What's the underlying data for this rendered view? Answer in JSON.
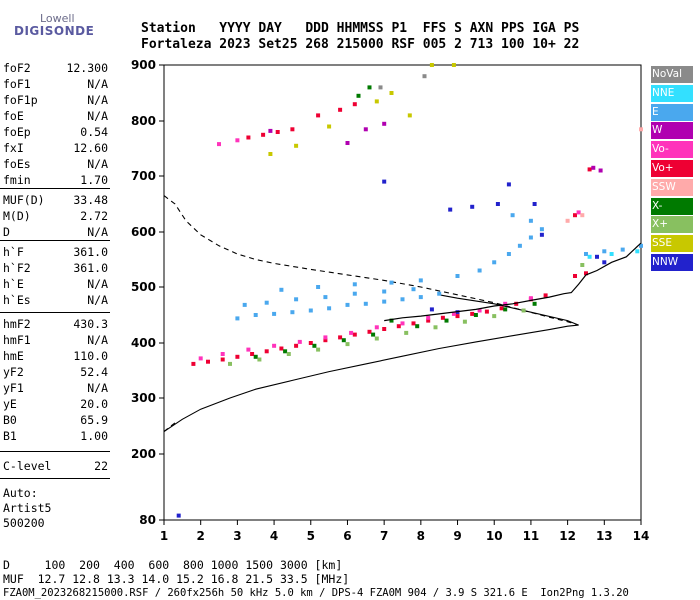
{
  "header": {
    "logo_top": "Lowell",
    "logo_bottom": "DIGISONDE",
    "line1": "Station   YYYY DAY   DDD HHMMSS P1  FFS S AXN PPS IGA PS",
    "line2": "Fortaleza 2023 Set25 268 215000 RSF 005 2 713 100 10+ 22"
  },
  "params": [
    {
      "k": "foF2",
      "v": "12.300"
    },
    {
      "k": "foF1",
      "v": "N/A"
    },
    {
      "k": "foF1p",
      "v": "N/A"
    },
    {
      "k": "foE",
      "v": "N/A"
    },
    {
      "k": "foEp",
      "v": "0.54"
    },
    {
      "k": "fxI",
      "v": "12.60"
    },
    {
      "k": "foEs",
      "v": "N/A"
    },
    {
      "k": "fmin",
      "v": "1.70"
    },
    {
      "k": "MUF(D)",
      "v": "33.48"
    },
    {
      "k": "M(D)",
      "v": "2.72"
    },
    {
      "k": "D",
      "v": "N/A"
    },
    {
      "k": "h`F",
      "v": "361.0"
    },
    {
      "k": "h`F2",
      "v": "361.0"
    },
    {
      "k": "h`E",
      "v": "N/A"
    },
    {
      "k": "h`Es",
      "v": "N/A"
    },
    {
      "k": "hmF2",
      "v": "430.3"
    },
    {
      "k": "hmF1",
      "v": "N/A"
    },
    {
      "k": "hmE",
      "v": "110.0"
    },
    {
      "k": "yF2",
      "v": "52.4"
    },
    {
      "k": "yF1",
      "v": "N/A"
    },
    {
      "k": "yE",
      "v": "20.0"
    },
    {
      "k": "B0",
      "v": "65.9"
    },
    {
      "k": "B1",
      "v": "1.00"
    },
    {
      "k": "C-level",
      "v": "22"
    }
  ],
  "auto": [
    "Auto:",
    "Artist5",
    "500200"
  ],
  "footer": {
    "line1": "D     100  200  400  600  800 1000 1500 3000 [km]",
    "line2": "MUF  12.7 12.8 13.3 14.0 15.2 16.8 21.5 33.5 [MHz]",
    "line3": "FZA0M_2023268215000.RSF / 260fx256h 50 kHz 5.0 km / DPS-4 FZA0M 904 / 3.9 S 321.6 E  Ion2Png 1.3.20"
  },
  "legend": [
    {
      "label": "NoVal",
      "color": "#8a8a8a"
    },
    {
      "label": "NNE",
      "color": "#33e0ff"
    },
    {
      "label": "E",
      "color": "#4aa8ee"
    },
    {
      "label": "W",
      "color": "#b000b0"
    },
    {
      "label": "Vo-",
      "color": "#ff33bb"
    },
    {
      "label": "Vo+",
      "color": "#ee0033"
    },
    {
      "label": "SSW",
      "color": "#ffaaaa"
    },
    {
      "label": "X-",
      "color": "#007a00"
    },
    {
      "label": "X+",
      "color": "#88c060"
    },
    {
      "label": "SSE",
      "color": "#c8c800"
    },
    {
      "label": "NNW",
      "color": "#2222cc"
    }
  ],
  "chart_data": {
    "type": "scatter",
    "xlim": [
      1,
      14
    ],
    "ylim": [
      80,
      900
    ],
    "x_ticks": [
      1,
      2,
      3,
      4,
      5,
      6,
      7,
      8,
      9,
      10,
      11,
      12,
      13,
      14
    ],
    "y_ticks": [
      80,
      200,
      300,
      400,
      500,
      600,
      700,
      800,
      900
    ],
    "frame_color": "#000000",
    "series": [
      {
        "name": "E",
        "color": "#4aa8ee",
        "points": [
          [
            3.0,
            444
          ],
          [
            3.5,
            450
          ],
          [
            4.0,
            452
          ],
          [
            4.5,
            455
          ],
          [
            5.0,
            458
          ],
          [
            5.5,
            462
          ],
          [
            6.0,
            468
          ],
          [
            6.5,
            470
          ],
          [
            7.0,
            474
          ],
          [
            7.5,
            478
          ],
          [
            8.0,
            482
          ],
          [
            8.5,
            488
          ],
          [
            3.2,
            468
          ],
          [
            3.8,
            472
          ],
          [
            4.6,
            478
          ],
          [
            5.4,
            482
          ],
          [
            6.2,
            488
          ],
          [
            7.0,
            492
          ],
          [
            7.8,
            496
          ],
          [
            4.2,
            495
          ],
          [
            5.2,
            500
          ],
          [
            6.2,
            505
          ],
          [
            7.2,
            508
          ],
          [
            8.0,
            512
          ],
          [
            9.0,
            520
          ],
          [
            9.6,
            530
          ],
          [
            10.0,
            545
          ],
          [
            10.4,
            560
          ],
          [
            10.7,
            575
          ],
          [
            11.0,
            590
          ],
          [
            11.3,
            605
          ],
          [
            10.5,
            630
          ],
          [
            11.0,
            620
          ],
          [
            12.5,
            560
          ],
          [
            13.0,
            565
          ],
          [
            13.5,
            568
          ],
          [
            14.0,
            575
          ]
        ]
      },
      {
        "name": "NNW",
        "color": "#2222cc",
        "points": [
          [
            7.0,
            690
          ],
          [
            8.8,
            640
          ],
          [
            9.4,
            645
          ],
          [
            10.1,
            650
          ],
          [
            10.4,
            685
          ],
          [
            11.1,
            650
          ],
          [
            11.3,
            595
          ],
          [
            12.8,
            555
          ],
          [
            13.0,
            545
          ],
          [
            8.3,
            460
          ],
          [
            9.0,
            455
          ],
          [
            1.4,
            88
          ]
        ]
      },
      {
        "name": "Vo+",
        "color": "#ee0033",
        "points": [
          [
            1.8,
            362
          ],
          [
            2.2,
            366
          ],
          [
            2.6,
            370
          ],
          [
            3.0,
            375
          ],
          [
            3.4,
            380
          ],
          [
            3.8,
            385
          ],
          [
            4.2,
            390
          ],
          [
            4.6,
            395
          ],
          [
            5.0,
            400
          ],
          [
            5.4,
            405
          ],
          [
            5.8,
            410
          ],
          [
            6.2,
            415
          ],
          [
            6.6,
            420
          ],
          [
            7.0,
            425
          ],
          [
            7.4,
            430
          ],
          [
            7.8,
            435
          ],
          [
            8.2,
            440
          ],
          [
            8.6,
            445
          ],
          [
            9.0,
            448
          ],
          [
            9.4,
            452
          ],
          [
            9.8,
            456
          ],
          [
            10.2,
            462
          ],
          [
            10.6,
            470
          ],
          [
            11.0,
            478
          ],
          [
            11.4,
            485
          ],
          [
            12.2,
            520
          ],
          [
            12.5,
            525
          ],
          [
            3.3,
            770
          ],
          [
            3.7,
            775
          ],
          [
            4.1,
            780
          ],
          [
            4.5,
            785
          ],
          [
            5.2,
            810
          ],
          [
            5.8,
            820
          ],
          [
            6.2,
            830
          ],
          [
            12.6,
            712
          ],
          [
            12.2,
            630
          ]
        ]
      },
      {
        "name": "Vo-",
        "color": "#ff33bb",
        "points": [
          [
            2.0,
            372
          ],
          [
            2.6,
            380
          ],
          [
            3.3,
            388
          ],
          [
            4.0,
            395
          ],
          [
            4.7,
            402
          ],
          [
            5.4,
            410
          ],
          [
            6.1,
            418
          ],
          [
            6.8,
            428
          ],
          [
            7.5,
            435
          ],
          [
            8.2,
            445
          ],
          [
            8.9,
            452
          ],
          [
            9.6,
            458
          ],
          [
            10.3,
            470
          ],
          [
            11.0,
            480
          ],
          [
            12.3,
            635
          ],
          [
            2.5,
            758
          ],
          [
            3.0,
            765
          ]
        ]
      },
      {
        "name": "X-",
        "color": "#007a00",
        "points": [
          [
            3.5,
            375
          ],
          [
            4.3,
            385
          ],
          [
            5.1,
            395
          ],
          [
            5.9,
            405
          ],
          [
            6.7,
            415
          ],
          [
            7.2,
            440
          ],
          [
            7.9,
            430
          ],
          [
            8.7,
            440
          ],
          [
            9.5,
            450
          ],
          [
            10.3,
            460
          ],
          [
            11.1,
            470
          ],
          [
            6.3,
            845
          ],
          [
            6.6,
            860
          ]
        ]
      },
      {
        "name": "X+",
        "color": "#88c060",
        "points": [
          [
            2.8,
            362
          ],
          [
            3.6,
            370
          ],
          [
            4.4,
            380
          ],
          [
            5.2,
            388
          ],
          [
            6.0,
            398
          ],
          [
            6.8,
            408
          ],
          [
            7.6,
            418
          ],
          [
            8.4,
            428
          ],
          [
            9.2,
            438
          ],
          [
            10.0,
            448
          ],
          [
            10.8,
            458
          ],
          [
            12.4,
            540
          ]
        ]
      },
      {
        "name": "W",
        "color": "#b000b0",
        "points": [
          [
            6.0,
            760
          ],
          [
            6.5,
            785
          ],
          [
            7.0,
            795
          ],
          [
            3.9,
            782
          ],
          [
            12.7,
            715
          ],
          [
            12.9,
            710
          ]
        ]
      },
      {
        "name": "SSE",
        "color": "#c8c800",
        "points": [
          [
            3.9,
            740
          ],
          [
            4.6,
            755
          ],
          [
            5.5,
            790
          ],
          [
            6.8,
            835
          ],
          [
            7.2,
            850
          ],
          [
            7.7,
            810
          ],
          [
            8.3,
            900
          ],
          [
            8.9,
            900
          ]
        ]
      },
      {
        "name": "SSW",
        "color": "#ffaaaa",
        "points": [
          [
            12.0,
            620
          ],
          [
            12.4,
            630
          ],
          [
            14.0,
            785
          ]
        ]
      },
      {
        "name": "NNE",
        "color": "#33e0ff",
        "points": [
          [
            12.6,
            555
          ],
          [
            13.2,
            560
          ],
          [
            13.9,
            565
          ]
        ]
      },
      {
        "name": "NoVal",
        "color": "#8a8a8a",
        "points": [
          [
            6.9,
            860
          ],
          [
            8.1,
            880
          ]
        ]
      }
    ],
    "profile_curve": [
      [
        1.0,
        240
      ],
      [
        1.5,
        262
      ],
      [
        2.0,
        280
      ],
      [
        2.8,
        300
      ],
      [
        3.5,
        316
      ],
      [
        4.5,
        332
      ],
      [
        5.5,
        348
      ],
      [
        6.5,
        362
      ],
      [
        7.5,
        376
      ],
      [
        8.5,
        390
      ],
      [
        9.5,
        402
      ],
      [
        10.5,
        413
      ],
      [
        11.5,
        424
      ],
      [
        12.0,
        430
      ],
      [
        12.3,
        432
      ]
    ],
    "profile_curve_upper": [
      [
        12.3,
        432
      ],
      [
        12.0,
        440
      ],
      [
        11.0,
        455
      ],
      [
        10.0,
        470
      ],
      [
        9.0,
        480
      ],
      [
        8.5,
        486
      ]
    ],
    "trace_curve": [
      [
        7.0,
        440
      ],
      [
        7.5,
        445
      ],
      [
        8.0,
        448
      ],
      [
        8.5,
        452
      ],
      [
        9.0,
        456
      ],
      [
        9.5,
        460
      ],
      [
        10.0,
        466
      ],
      [
        10.5,
        470
      ],
      [
        11.0,
        476
      ],
      [
        11.5,
        482
      ],
      [
        11.9,
        488
      ],
      [
        12.1,
        490
      ],
      [
        12.3,
        505
      ],
      [
        12.5,
        522
      ],
      [
        12.8,
        530
      ],
      [
        13.2,
        545
      ],
      [
        13.6,
        555
      ],
      [
        14.0,
        580
      ]
    ],
    "dashed_curve": [
      [
        1.0,
        665
      ],
      [
        1.3,
        650
      ],
      [
        1.6,
        620
      ],
      [
        2.0,
        595
      ],
      [
        2.5,
        575
      ],
      [
        3.0,
        560
      ],
      [
        3.5,
        550
      ],
      [
        4.0,
        543
      ],
      [
        5.0,
        532
      ],
      [
        6.0,
        522
      ],
      [
        7.0,
        512
      ],
      [
        8.0,
        500
      ],
      [
        9.0,
        486
      ],
      [
        10.0,
        472
      ],
      [
        10.8,
        458
      ],
      [
        11.5,
        446
      ],
      [
        12.0,
        438
      ],
      [
        12.3,
        432
      ]
    ],
    "dashed_curve_lower": [
      [
        1.0,
        240
      ],
      [
        1.15,
        248
      ],
      [
        1.35,
        258
      ]
    ]
  }
}
